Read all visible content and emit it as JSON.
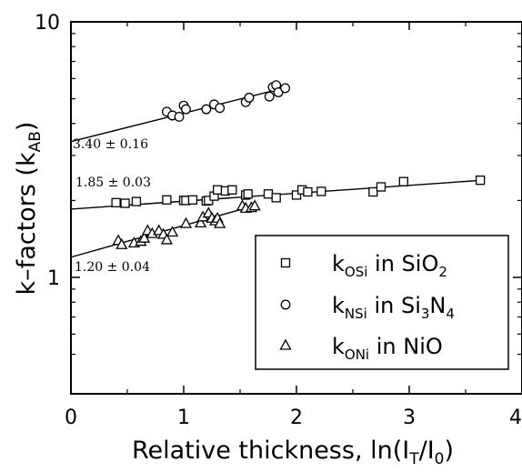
{
  "chart_data": {
    "type": "scatter",
    "xlabel_main": "Relative thickness, ln(I",
    "xlabel_sub1": "T",
    "xlabel_mid": "/I",
    "xlabel_sub2": "0",
    "xlabel_end": ")",
    "ylabel_main": "k–factors (k",
    "ylabel_sub": "AB",
    "ylabel_end": ")",
    "xlim": [
      0,
      4
    ],
    "ylim": [
      0.45,
      10
    ],
    "y_scale": "log",
    "x_ticks": [
      "0",
      "1",
      "2",
      "3",
      "4"
    ],
    "y_ticks": [
      "1",
      "10"
    ],
    "grid": false,
    "legend_position": "lower-right",
    "legend": [
      {
        "symbol": "square",
        "main": "k",
        "sub": "OSi",
        "tail": " in SiO",
        "sub2": "2",
        "tail2": ""
      },
      {
        "symbol": "circle",
        "main": "k",
        "sub": "NSi",
        "tail": " in Si",
        "sub2": "3",
        "tail2": "N",
        "sub3": "4"
      },
      {
        "symbol": "triangle",
        "main": "k",
        "sub": "ONi",
        "tail": " in NiO",
        "sub2": "",
        "tail2": ""
      }
    ],
    "annotations": {
      "nsi_intercept": "3.40 ± 0.16",
      "osi_intercept": "1.85 ± 0.03",
      "oni_intercept": "1.20 ± 0.04"
    },
    "series": [
      {
        "symbol": "circle",
        "fit": {
          "x0": 0,
          "y0": 3.4,
          "x1": 1.92,
          "y1": 5.55
        },
        "points": [
          [
            0.85,
            4.45
          ],
          [
            0.9,
            4.3
          ],
          [
            0.96,
            4.25
          ],
          [
            1.0,
            4.7
          ],
          [
            1.02,
            4.55
          ],
          [
            1.2,
            4.55
          ],
          [
            1.27,
            4.75
          ],
          [
            1.32,
            4.6
          ],
          [
            1.55,
            4.85
          ],
          [
            1.58,
            5.05
          ],
          [
            1.76,
            5.1
          ],
          [
            1.79,
            5.55
          ],
          [
            1.82,
            5.65
          ],
          [
            1.84,
            5.3
          ],
          [
            1.9,
            5.5
          ]
        ]
      },
      {
        "symbol": "square",
        "fit": {
          "x0": 0,
          "y0": 1.85,
          "x1": 3.65,
          "y1": 2.4
        },
        "points": [
          [
            0.4,
            1.96
          ],
          [
            0.48,
            1.95
          ],
          [
            0.58,
            1.98
          ],
          [
            0.85,
            2.01
          ],
          [
            1.0,
            2.0
          ],
          [
            1.02,
            2.0
          ],
          [
            1.08,
            2.01
          ],
          [
            1.2,
            1.99
          ],
          [
            1.22,
            2.0
          ],
          [
            1.27,
            2.08
          ],
          [
            1.3,
            2.2
          ],
          [
            1.37,
            2.18
          ],
          [
            1.43,
            2.2
          ],
          [
            1.55,
            2.1
          ],
          [
            1.57,
            2.12
          ],
          [
            1.75,
            2.12
          ],
          [
            1.82,
            2.05
          ],
          [
            2.0,
            2.1
          ],
          [
            2.05,
            2.2
          ],
          [
            2.1,
            2.16
          ],
          [
            2.22,
            2.17
          ],
          [
            2.68,
            2.16
          ],
          [
            2.75,
            2.26
          ],
          [
            2.95,
            2.37
          ],
          [
            3.63,
            2.4
          ]
        ]
      },
      {
        "symbol": "triangle",
        "fit": {
          "x0": 0,
          "y0": 1.2,
          "x1": 1.65,
          "y1": 1.92
        },
        "points": [
          [
            0.42,
            1.39
          ],
          [
            0.45,
            1.34
          ],
          [
            0.56,
            1.36
          ],
          [
            0.62,
            1.38
          ],
          [
            0.65,
            1.42
          ],
          [
            0.68,
            1.52
          ],
          [
            0.72,
            1.48
          ],
          [
            0.78,
            1.52
          ],
          [
            0.82,
            1.47
          ],
          [
            0.85,
            1.4
          ],
          [
            0.9,
            1.5
          ],
          [
            1.02,
            1.62
          ],
          [
            1.15,
            1.63
          ],
          [
            1.17,
            1.72
          ],
          [
            1.22,
            1.78
          ],
          [
            1.25,
            1.7
          ],
          [
            1.28,
            1.66
          ],
          [
            1.3,
            1.7
          ],
          [
            1.32,
            1.62
          ],
          [
            1.52,
            1.9
          ],
          [
            1.55,
            1.86
          ],
          [
            1.6,
            1.87
          ],
          [
            1.63,
            1.9
          ]
        ]
      }
    ]
  }
}
